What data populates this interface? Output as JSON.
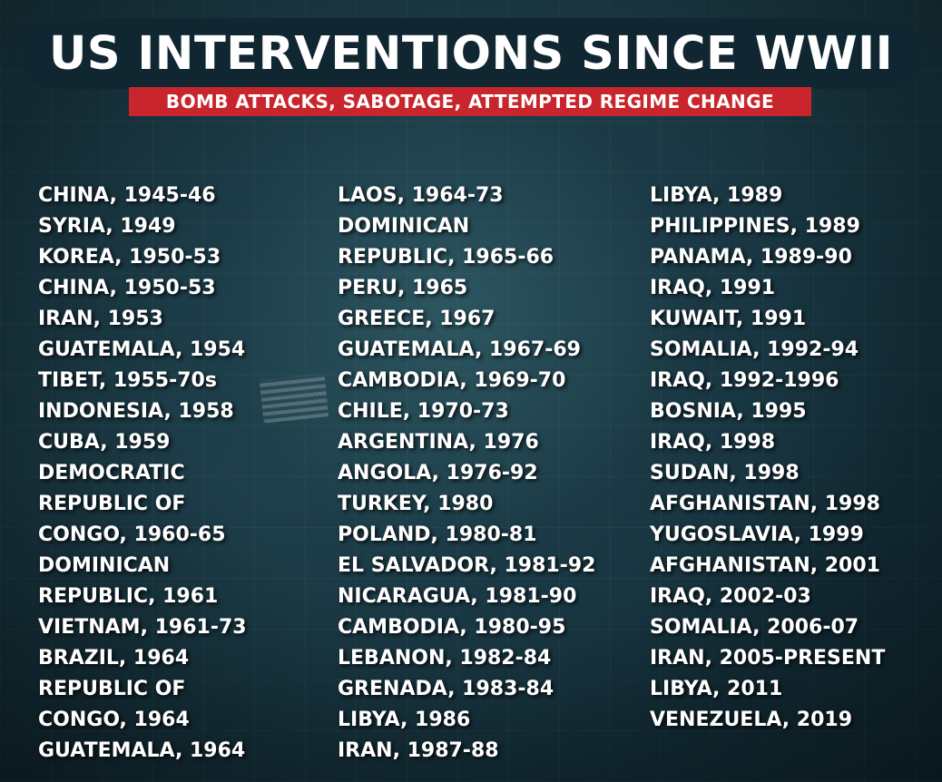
{
  "title": "US INTERVENTIONS SINCE WWII",
  "subtitle": "BOMB ATTACKS, SABOTAGE, ATTEMPTED REGIME CHANGE",
  "colors": {
    "title_bg": "#102631",
    "subtitle_bg": "#c8262c",
    "text": "#ffffff",
    "background": "#16303a"
  },
  "columns": [
    [
      "CHINA, 1945-46",
      "SYRIA, 1949",
      "KOREA, 1950-53",
      "CHINA, 1950-53",
      "IRAN, 1953",
      "GUATEMALA, 1954",
      "TIBET, 1955-70s",
      "INDONESIA, 1958",
      "CUBA, 1959",
      "DEMOCRATIC",
      "REPUBLIC OF",
      "CONGO, 1960-65",
      "DOMINICAN",
      "REPUBLIC, 1961",
      "VIETNAM, 1961-73",
      "BRAZIL, 1964",
      "REPUBLIC OF",
      "CONGO, 1964",
      "GUATEMALA, 1964"
    ],
    [
      "LAOS, 1964-73",
      "DOMINICAN",
      "REPUBLIC, 1965-66",
      "PERU, 1965",
      "GREECE, 1967",
      "GUATEMALA, 1967-69",
      "CAMBODIA, 1969-70",
      "CHILE, 1970-73",
      "ARGENTINA, 1976",
      "ANGOLA, 1976-92",
      "TURKEY, 1980",
      "POLAND, 1980-81",
      "EL SALVADOR, 1981-92",
      "NICARAGUA, 1981-90",
      "CAMBODIA, 1980-95",
      "LEBANON, 1982-84",
      "GRENADA, 1983-84",
      "LIBYA, 1986",
      "IRAN, 1987-88"
    ],
    [
      "LIBYA, 1989",
      "PHILIPPINES, 1989",
      "PANAMA, 1989-90",
      "IRAQ, 1991",
      "KUWAIT, 1991",
      "SOMALIA, 1992-94",
      "IRAQ, 1992-1996",
      "BOSNIA, 1995",
      "IRAQ, 1998",
      "SUDAN, 1998",
      "AFGHANISTAN, 1998",
      "YUGOSLAVIA, 1999",
      "AFGHANISTAN, 2001",
      "IRAQ, 2002-03",
      "SOMALIA, 2006-07",
      "IRAN, 2005-PRESENT",
      "LIBYA, 2011",
      "VENEZUELA, 2019"
    ]
  ]
}
